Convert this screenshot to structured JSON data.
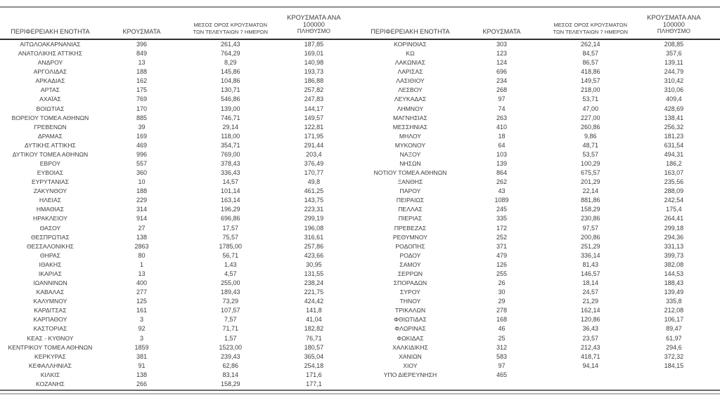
{
  "columns": {
    "region": "ΠΕΡΙΦΕΡΕΙΑΚΗ ΕΝΟΤΗΤΑ",
    "cases": "ΚΡΟΥΣΜΑΤΑ",
    "avg7_line1": "ΜΕΣΟΣ ΟΡΟΣ ΚΡΟΥΣΜΑΤΩΝ",
    "avg7_line2": "ΤΩΝ ΤΕΛΕΥΤΑΙΩΝ 7 ΗΜΕΡΩΝ",
    "per100k_line1": "ΚΡΟΥΣΜΑΤΑ ΑΝΑ 100000",
    "per100k_line2": "ΠΛΗΘΥΣΜΟ"
  },
  "colors": {
    "text": "#3d3d3d",
    "rule_top": "#8d8d8d",
    "rule_header": "#2e2e2e",
    "rule_bottom_dark": "#6a6a6a",
    "rule_bottom_light": "#b3b3b3"
  },
  "tables": [
    {
      "rows": [
        [
          "ΑΙΤΩΛΟΑΚΑΡΝΑΝΙΑΣ",
          "396",
          "261,43",
          "187,85"
        ],
        [
          "ΑΝΑΤΟΛΙΚΗΣ ΑΤΤΙΚΗΣ",
          "849",
          "764,29",
          "169,01"
        ],
        [
          "ΑΝΔΡΟΥ",
          "13",
          "8,29",
          "140,98"
        ],
        [
          "ΑΡΓΟΛΙΔΑΣ",
          "188",
          "145,86",
          "193,73"
        ],
        [
          "ΑΡΚΑΔΙΑΣ",
          "162",
          "104,86",
          "186,88"
        ],
        [
          "ΑΡΤΑΣ",
          "175",
          "130,71",
          "257,82"
        ],
        [
          "ΑΧΑΪΑΣ",
          "769",
          "546,86",
          "247,83"
        ],
        [
          "ΒΟΙΩΤΙΑΣ",
          "170",
          "139,00",
          "144,17"
        ],
        [
          "ΒΟΡΕΙΟΥ ΤΟΜΕΑ ΑΘΗΝΩΝ",
          "885",
          "746,71",
          "149,57"
        ],
        [
          "ΓΡΕΒΕΝΩΝ",
          "39",
          "29,14",
          "122,81"
        ],
        [
          "ΔΡΑΜΑΣ",
          "169",
          "118,00",
          "171,95"
        ],
        [
          "ΔΥΤΙΚΗΣ ΑΤΤΙΚΗΣ",
          "469",
          "354,71",
          "291,44"
        ],
        [
          "ΔΥΤΙΚΟΥ ΤΟΜΕΑ ΑΘΗΝΩΝ",
          "996",
          "769,00",
          "203,4"
        ],
        [
          "ΕΒΡΟΥ",
          "557",
          "378,43",
          "376,49"
        ],
        [
          "ΕΥΒΟΙΑΣ",
          "360",
          "336,43",
          "170,77"
        ],
        [
          "ΕΥΡΥΤΑΝΙΑΣ",
          "10",
          "14,57",
          "49,8"
        ],
        [
          "ΖΑΚΥΝΘΟΥ",
          "188",
          "101,14",
          "461,25"
        ],
        [
          "ΗΛΕΙΑΣ",
          "229",
          "163,14",
          "143,75"
        ],
        [
          "ΗΜΑΘΙΑΣ",
          "314",
          "196,29",
          "223,31"
        ],
        [
          "ΗΡΑΚΛΕΙΟΥ",
          "914",
          "696,86",
          "299,19"
        ],
        [
          "ΘΑΣΟΥ",
          "27",
          "17,57",
          "196,08"
        ],
        [
          "ΘΕΣΠΡΩΤΙΑΣ",
          "138",
          "75,57",
          "316,61"
        ],
        [
          "ΘΕΣΣΑΛΟΝΙΚΗΣ",
          "2863",
          "1785,00",
          "257,86"
        ],
        [
          "ΘΗΡΑΣ",
          "80",
          "56,71",
          "423,66"
        ],
        [
          "ΙΘΑΚΗΣ",
          "1",
          "1,43",
          "30,95"
        ],
        [
          "ΙΚΑΡΙΑΣ",
          "13",
          "4,57",
          "131,55"
        ],
        [
          "ΙΩΑΝΝΙΝΩΝ",
          "400",
          "255,00",
          "238,24"
        ],
        [
          "ΚΑΒΑΛΑΣ",
          "277",
          "189,43",
          "221,75"
        ],
        [
          "ΚΑΛΥΜΝΟΥ",
          "125",
          "73,29",
          "424,42"
        ],
        [
          "ΚΑΡΔΙΤΣΑΣ",
          "161",
          "107,57",
          "141,8"
        ],
        [
          "ΚΑΡΠΑΘΟΥ",
          "3",
          "7,57",
          "41,04"
        ],
        [
          "ΚΑΣΤΟΡΙΑΣ",
          "92",
          "71,71",
          "182,82"
        ],
        [
          "ΚΕΑΣ - ΚΥΘΝΟΥ",
          "3",
          "1,57",
          "76,71"
        ],
        [
          "ΚΕΝΤΡΙΚΟΥ ΤΟΜΕΑ ΑΘΗΝΩΝ",
          "1859",
          "1523,00",
          "180,57"
        ],
        [
          "ΚΕΡΚΥΡΑΣ",
          "381",
          "239,43",
          "365,04"
        ],
        [
          "ΚΕΦΑΛΛΗΝΙΑΣ",
          "91",
          "62,86",
          "254,18"
        ],
        [
          "ΚΙΛΚΙΣ",
          "138",
          "83,14",
          "171,6"
        ],
        [
          "ΚΟΖΑΝΗΣ",
          "266",
          "158,29",
          "177,1"
        ]
      ]
    },
    {
      "rows": [
        [
          "ΚΟΡΙΝΘΙΑΣ",
          "303",
          "262,14",
          "208,85"
        ],
        [
          "ΚΩ",
          "123",
          "84,57",
          "357,6"
        ],
        [
          "ΛΑΚΩΝΙΑΣ",
          "124",
          "86,57",
          "139,11"
        ],
        [
          "ΛΑΡΙΣΑΣ",
          "696",
          "418,86",
          "244,79"
        ],
        [
          "ΛΑΣΙΘΙΟΥ",
          "234",
          "149,57",
          "310,42"
        ],
        [
          "ΛΕΣΒΟΥ",
          "268",
          "218,00",
          "310,06"
        ],
        [
          "ΛΕΥΚΑΔΑΣ",
          "97",
          "53,71",
          "409,4"
        ],
        [
          "ΛΗΜΝΟΥ",
          "74",
          "47,00",
          "428,69"
        ],
        [
          "ΜΑΓΝΗΣΙΑΣ",
          "263",
          "227,00",
          "138,41"
        ],
        [
          "ΜΕΣΣΗΝΙΑΣ",
          "410",
          "260,86",
          "256,32"
        ],
        [
          "ΜΗΛΟΥ",
          "18",
          "9,86",
          "181,23"
        ],
        [
          "ΜΥΚΟΝΟΥ",
          "64",
          "48,71",
          "631,54"
        ],
        [
          "ΝΑΞΟΥ",
          "103",
          "53,57",
          "494,31"
        ],
        [
          "ΝΗΣΩΝ",
          "139",
          "100,29",
          "186,2"
        ],
        [
          "ΝΟΤΙΟΥ ΤΟΜΕΑ ΑΘΗΝΩΝ",
          "864",
          "675,57",
          "163,07"
        ],
        [
          "ΞΑΝΘΗΣ",
          "262",
          "201,29",
          "235,56"
        ],
        [
          "ΠΑΡΟΥ",
          "43",
          "22,14",
          "288,09"
        ],
        [
          "ΠΕΙΡΑΙΩΣ",
          "1089",
          "881,86",
          "242,54"
        ],
        [
          "ΠΕΛΛΑΣ",
          "245",
          "158,29",
          "175,4"
        ],
        [
          "ΠΙΕΡΙΑΣ",
          "335",
          "230,86",
          "264,41"
        ],
        [
          "ΠΡΕΒΕΖΑΣ",
          "172",
          "97,57",
          "299,18"
        ],
        [
          "ΡΕΘΥΜΝΟΥ",
          "252",
          "200,86",
          "294,36"
        ],
        [
          "ΡΟΔΟΠΗΣ",
          "371",
          "251,29",
          "331,13"
        ],
        [
          "ΡΟΔΟΥ",
          "479",
          "336,14",
          "399,73"
        ],
        [
          "ΣΑΜΟΥ",
          "126",
          "81,43",
          "382,08"
        ],
        [
          "ΣΕΡΡΩΝ",
          "255",
          "146,57",
          "144,53"
        ],
        [
          "ΣΠΟΡΑΔΩΝ",
          "26",
          "18,14",
          "188,43"
        ],
        [
          "ΣΥΡΟΥ",
          "30",
          "24,57",
          "139,49"
        ],
        [
          "ΤΗΝΟΥ",
          "29",
          "21,29",
          "335,8"
        ],
        [
          "ΤΡΙΚΑΛΩΝ",
          "278",
          "162,14",
          "212,08"
        ],
        [
          "ΦΘΙΩΤΙΔΑΣ",
          "168",
          "120,86",
          "106,17"
        ],
        [
          "ΦΛΩΡΙΝΑΣ",
          "46",
          "36,43",
          "89,47"
        ],
        [
          "ΦΩΚΙΔΑΣ",
          "25",
          "23,57",
          "61,97"
        ],
        [
          "ΧΑΛΚΙΔΙΚΗΣ",
          "312",
          "212,43",
          "294,6"
        ],
        [
          "ΧΑΝΙΩΝ",
          "583",
          "418,71",
          "372,32"
        ],
        [
          "ΧΙΟΥ",
          "97",
          "94,14",
          "184,15"
        ],
        [
          "ΥΠΟ ΔΙΕΡΕΥΝΗΣΗ",
          "465",
          "",
          ""
        ]
      ]
    }
  ]
}
